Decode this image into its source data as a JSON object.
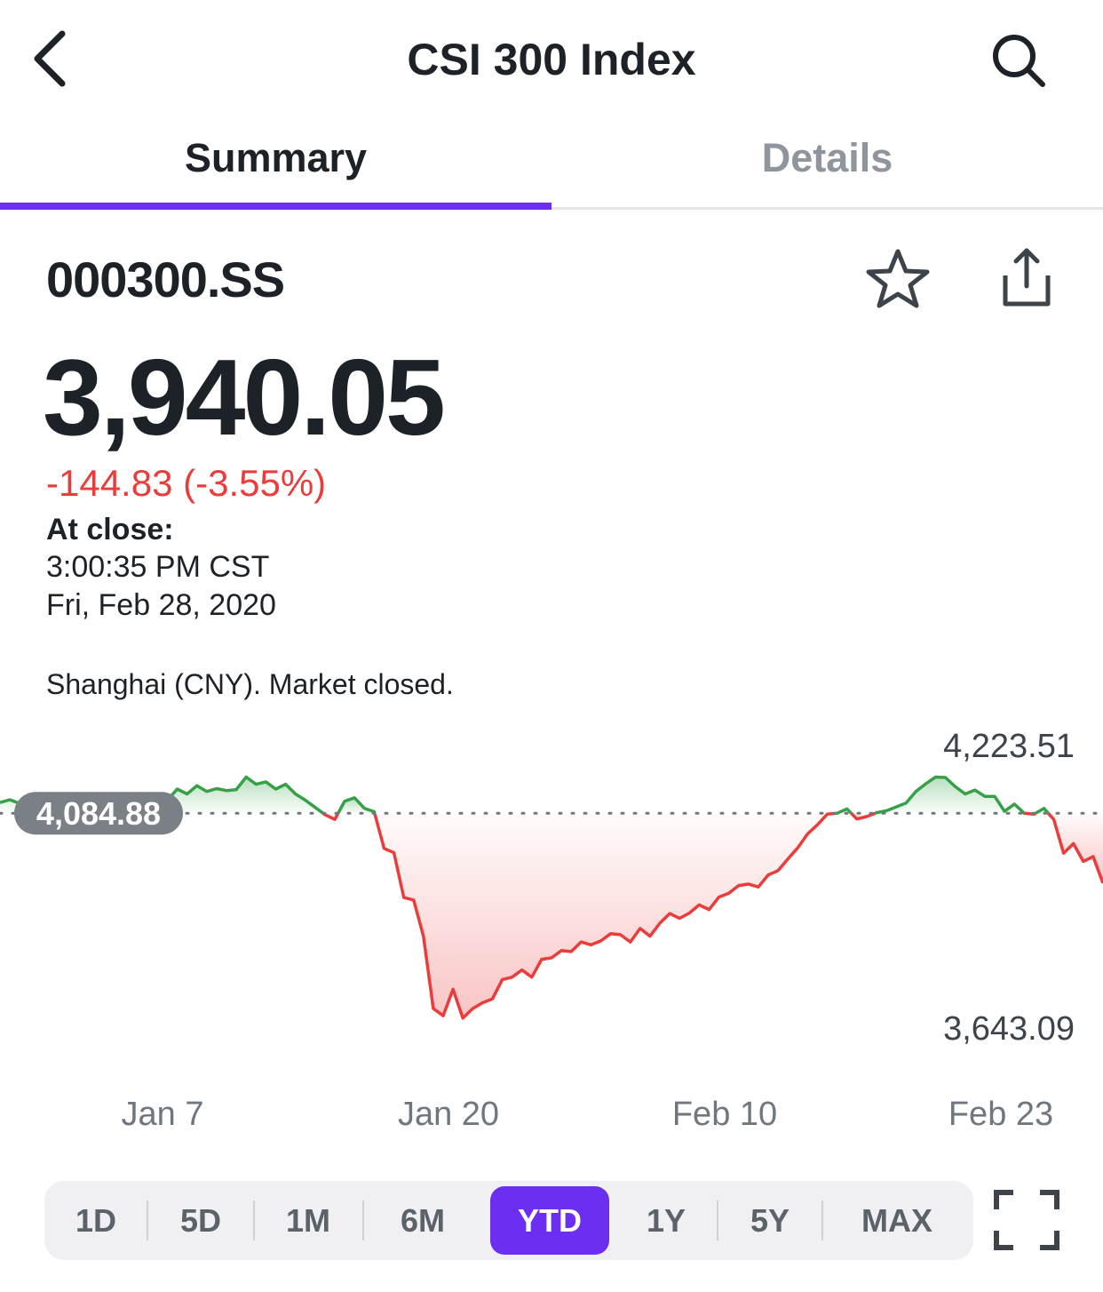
{
  "header": {
    "title": "CSI 300 Index",
    "back_icon": "chevron-left-icon",
    "search_icon": "search-icon"
  },
  "tabs": [
    {
      "label": "Summary",
      "active": true
    },
    {
      "label": "Details",
      "active": false
    }
  ],
  "quote": {
    "symbol": "000300.SS",
    "price": "3,940.05",
    "change": "-144.83 (-3.55%)",
    "at_close_label": "At close:",
    "close_time": "3:00:35 PM CST",
    "close_date": "Fri, Feb 28, 2020",
    "market_status": "Shanghai (CNY). Market closed.",
    "star_icon": "star-outline-icon",
    "share_icon": "share-icon"
  },
  "colors": {
    "accent": "#6c2ff2",
    "negative": "#eb3c3c",
    "positive": "#36a047",
    "baseline_badge": "#7b8087"
  },
  "chart_data": {
    "type": "line",
    "x_tick_labels": [
      "Jan 7",
      "Jan 20",
      "Feb 10",
      "Feb 23"
    ],
    "high_label": "4,223.51",
    "low_label": "3,643.09",
    "previous_close_label": "4,084.88",
    "previous_close": 4084.88,
    "high": 4223.51,
    "low": 3643.09,
    "values": [
      4107,
      4113,
      4105,
      4118,
      4102,
      4109,
      4095,
      4112,
      4100,
      4118,
      4105,
      4110,
      4108,
      4114,
      4100,
      4120,
      4124,
      4112,
      4135,
      4125,
      4142,
      4130,
      4136,
      4132,
      4134,
      4160,
      4145,
      4150,
      4135,
      4145,
      4125,
      4112,
      4097,
      4082,
      4072,
      4110,
      4117,
      4095,
      4088,
      4012,
      4003,
      3910,
      3905,
      3830,
      3680,
      3665,
      3720,
      3660,
      3680,
      3692,
      3700,
      3740,
      3745,
      3760,
      3745,
      3782,
      3785,
      3800,
      3798,
      3818,
      3812,
      3820,
      3835,
      3833,
      3818,
      3846,
      3830,
      3857,
      3877,
      3867,
      3878,
      3895,
      3885,
      3911,
      3919,
      3935,
      3938,
      3932,
      3957,
      3966,
      3990,
      4013,
      4042,
      4061,
      4083,
      4085,
      4094,
      4073,
      4078,
      4086,
      4090,
      4098,
      4106,
      4130,
      4146,
      4160,
      4159,
      4140,
      4125,
      4133,
      4120,
      4120,
      4089,
      4104,
      4085,
      4083,
      4095,
      4072,
      4002,
      4022,
      3985,
      3995,
      3940
    ],
    "series": [
      {
        "name": "",
        "values_ref": "values"
      }
    ]
  },
  "ranges": {
    "items": [
      "1D",
      "5D",
      "1M",
      "6M",
      "YTD",
      "1Y",
      "5Y",
      "MAX"
    ],
    "active": "YTD",
    "expand_icon": "fullscreen-expand-icon"
  }
}
